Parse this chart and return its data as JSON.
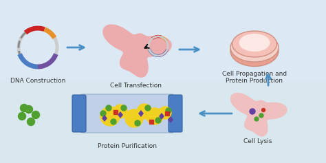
{
  "bg_top": "#dce9f5",
  "bg_bottom": "#dde8f0",
  "fig_width": 4.74,
  "fig_height": 2.37,
  "dpi": 100,
  "labels": {
    "dna": "DNA Construction",
    "transfection": "Cell Transfection",
    "propagation": "Cell Propagation and\nProtein Production",
    "purification": "Protein Purification",
    "lysis": "Cell Lysis"
  },
  "label_fontsize": 6.5,
  "arrow_color": "#4a90c4",
  "cell_color": "#f0a0a0",
  "plasmid_ring_color": "#cccccc",
  "plasmid_segments": {
    "red": "#cc2222",
    "orange": "#e8902a",
    "blue": "#4a7dc4",
    "purple": "#7050a0",
    "dashes": "#888888"
  },
  "petri_color": "#f5c0b8",
  "petri_rim": "#e8a090",
  "column_bg": "#c0d0e8",
  "column_end": "#4a7dc4",
  "yellow_blob": "#f0d020",
  "green_dot": "#50a030",
  "purple_diamond": "#6040a0",
  "red_square": "#cc3322",
  "black_arrow": "#111111"
}
